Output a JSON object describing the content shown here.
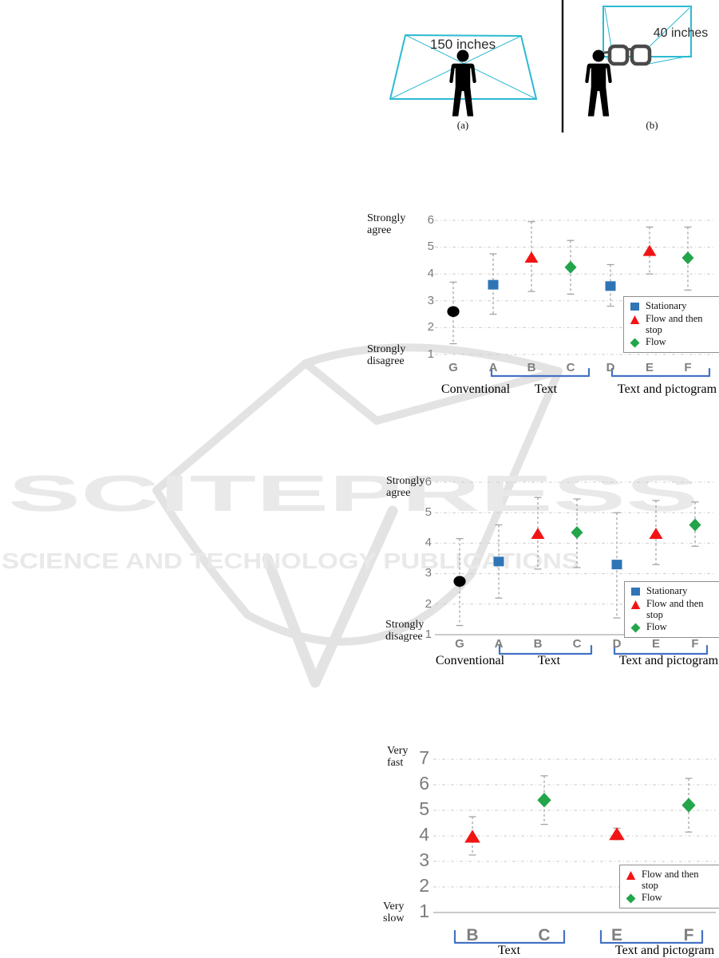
{
  "watermark": {
    "logo_text": "SCITEPRESS",
    "subtitle_text": "SCIENCE AND TECHNOLOGY PUBLICATIONS",
    "color": "#e9e9e9"
  },
  "figure": {
    "panel_a": {
      "screen_label": "150 inches",
      "caption": "(a)"
    },
    "panel_b": {
      "screen_label": "40 inches",
      "caption": "(b)"
    },
    "screen_color": "#2cbad1"
  },
  "colors": {
    "stationary_blue": "#2f75b6",
    "flow_stop_red": "#f21414",
    "flow_green": "#23a54b",
    "conventional_black": "#000000",
    "bracket_blue": "#4472c4",
    "gridline_gray": "#cdcdcd",
    "errorbar_gray": "#9e9e9e"
  },
  "chart_data": [
    {
      "id": "agreement-chart-1",
      "type": "scatter",
      "y_axis": {
        "top_label": "Strongly\nagree",
        "bottom_label": "Strongly\ndisagree",
        "ylim": [
          1,
          6
        ],
        "yticks": [
          1,
          2,
          3,
          4,
          5,
          6
        ]
      },
      "categories": [
        "G",
        "A",
        "B",
        "C",
        "D",
        "E",
        "F"
      ],
      "points": [
        {
          "category": "G",
          "series": "Conventional",
          "marker": "circle",
          "color": "#000000",
          "value": 2.6,
          "err_low": 1.4,
          "err_high": 3.7
        },
        {
          "category": "A",
          "series": "Stationary",
          "marker": "square",
          "color": "#2f75b6",
          "value": 3.6,
          "err_low": 2.5,
          "err_high": 4.75
        },
        {
          "category": "B",
          "series": "Flow and then stop",
          "marker": "triangle",
          "color": "#f21414",
          "value": 4.6,
          "err_low": 3.35,
          "err_high": 5.95
        },
        {
          "category": "C",
          "series": "Flow",
          "marker": "diamond",
          "color": "#23a54b",
          "value": 4.25,
          "err_low": 3.25,
          "err_high": 5.25
        },
        {
          "category": "D",
          "series": "Stationary",
          "marker": "square",
          "color": "#2f75b6",
          "value": 3.55,
          "err_low": 2.8,
          "err_high": 4.35
        },
        {
          "category": "E",
          "series": "Flow and then stop",
          "marker": "triangle",
          "color": "#f21414",
          "value": 4.85,
          "err_low": 4.0,
          "err_high": 5.75
        },
        {
          "category": "F",
          "series": "Flow",
          "marker": "diamond",
          "color": "#23a54b",
          "value": 4.6,
          "err_low": 3.4,
          "err_high": 5.75
        }
      ],
      "groups": [
        {
          "label": "Conventional",
          "categories": [
            "G"
          ],
          "bracket": false
        },
        {
          "label": "Text",
          "categories": [
            "A",
            "B",
            "C"
          ],
          "bracket": true
        },
        {
          "label": "Text and pictogram",
          "categories": [
            "D",
            "E",
            "F"
          ],
          "bracket": true
        }
      ],
      "legend": [
        {
          "label": "Stationary",
          "marker": "square",
          "color": "#2f75b6"
        },
        {
          "label": "Flow and then stop",
          "marker": "triangle",
          "color": "#f21414"
        },
        {
          "label": "Flow",
          "marker": "diamond",
          "color": "#23a54b"
        }
      ]
    },
    {
      "id": "agreement-chart-2",
      "type": "scatter",
      "y_axis": {
        "top_label": "Strongly\nagree",
        "bottom_label": "Strongly\ndisagree",
        "ylim": [
          1,
          6
        ],
        "yticks": [
          1,
          2,
          3,
          4,
          5,
          6
        ]
      },
      "categories": [
        "G",
        "A",
        "B",
        "C",
        "D",
        "E",
        "F"
      ],
      "points": [
        {
          "category": "G",
          "series": "Conventional",
          "marker": "circle",
          "color": "#000000",
          "value": 2.75,
          "err_low": 1.3,
          "err_high": 4.15
        },
        {
          "category": "A",
          "series": "Stationary",
          "marker": "square",
          "color": "#2f75b6",
          "value": 3.4,
          "err_low": 2.2,
          "err_high": 4.6
        },
        {
          "category": "B",
          "series": "Flow and then stop",
          "marker": "triangle",
          "color": "#f21414",
          "value": 4.3,
          "err_low": 3.15,
          "err_high": 5.5
        },
        {
          "category": "C",
          "series": "Flow",
          "marker": "diamond",
          "color": "#23a54b",
          "value": 4.35,
          "err_low": 3.2,
          "err_high": 5.45
        },
        {
          "category": "D",
          "series": "Stationary",
          "marker": "square",
          "color": "#2f75b6",
          "value": 3.3,
          "err_low": 1.55,
          "err_high": 5.0
        },
        {
          "category": "E",
          "series": "Flow and then stop",
          "marker": "triangle",
          "color": "#f21414",
          "value": 4.3,
          "err_low": 3.3,
          "err_high": 5.4
        },
        {
          "category": "F",
          "series": "Flow",
          "marker": "diamond",
          "color": "#23a54b",
          "value": 4.6,
          "err_low": 3.9,
          "err_high": 5.35
        }
      ],
      "groups": [
        {
          "label": "Conventional",
          "categories": [
            "G"
          ],
          "bracket": false
        },
        {
          "label": "Text",
          "categories": [
            "A",
            "B",
            "C"
          ],
          "bracket": true
        },
        {
          "label": "Text and pictogram",
          "categories": [
            "D",
            "E",
            "F"
          ],
          "bracket": true
        }
      ],
      "legend": [
        {
          "label": "Stationary",
          "marker": "square",
          "color": "#2f75b6"
        },
        {
          "label": "Flow and then stop",
          "marker": "triangle",
          "color": "#f21414"
        },
        {
          "label": "Flow",
          "marker": "diamond",
          "color": "#23a54b"
        }
      ]
    },
    {
      "id": "speed-chart",
      "type": "scatter",
      "y_axis": {
        "top_label": "Very\nfast",
        "bottom_label": "Very\nslow",
        "ylim": [
          1,
          7
        ],
        "yticks": [
          1,
          2,
          3,
          4,
          5,
          6,
          7
        ]
      },
      "categories": [
        "B",
        "C",
        "E",
        "F"
      ],
      "points": [
        {
          "category": "B",
          "series": "Flow and then stop",
          "marker": "triangle",
          "color": "#f21414",
          "value": 3.95,
          "err_low": 3.25,
          "err_high": 4.75
        },
        {
          "category": "C",
          "series": "Flow",
          "marker": "diamond",
          "color": "#23a54b",
          "value": 5.4,
          "err_low": 4.45,
          "err_high": 6.35
        },
        {
          "category": "E",
          "series": "Flow and then stop",
          "marker": "triangle",
          "color": "#f21414",
          "value": 4.05,
          "err_low": 3.85,
          "err_high": 4.3
        },
        {
          "category": "F",
          "series": "Flow",
          "marker": "diamond",
          "color": "#23a54b",
          "value": 5.2,
          "err_low": 4.15,
          "err_high": 6.25
        }
      ],
      "groups": [
        {
          "label": "Text",
          "categories": [
            "B",
            "C"
          ],
          "bracket": true
        },
        {
          "label": "Text and pictogram",
          "categories": [
            "E",
            "F"
          ],
          "bracket": true
        }
      ],
      "legend": [
        {
          "label": "Flow and then stop",
          "marker": "triangle",
          "color": "#f21414"
        },
        {
          "label": "Flow",
          "marker": "diamond",
          "color": "#23a54b"
        }
      ]
    }
  ]
}
